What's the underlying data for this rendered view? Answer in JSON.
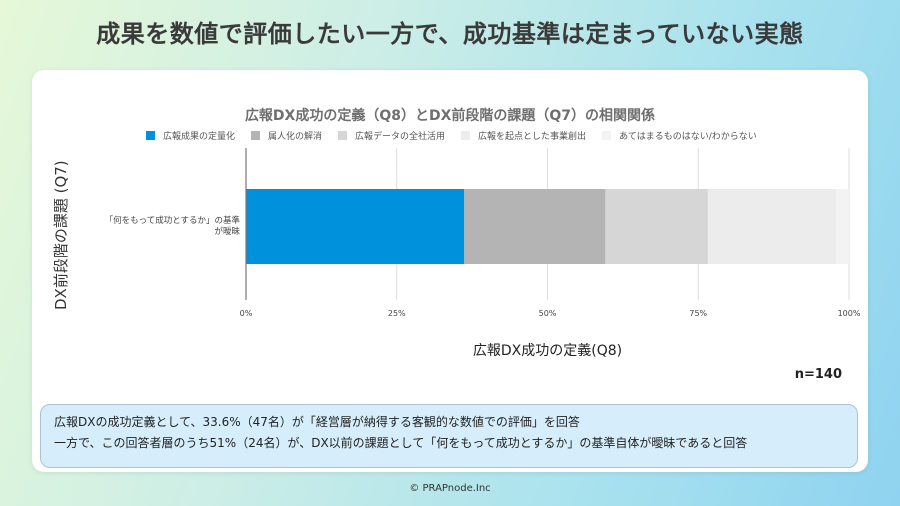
{
  "page": {
    "title": "成果を数値で評価したい一方で、成功基準は定まっていない実態",
    "copyright": "© PRAPnode.Inc"
  },
  "summary": {
    "line1": "広報DXの成功定義として、33.6%（47名）が「経営層が納得する客観的な数値での評価」を回答",
    "line2": "一方で、この回答者層のうち51%（24名）が、DX以前の課題として「何をもって成功とするか」の基準自体が曖昧であると回答"
  },
  "chart_data": {
    "type": "bar",
    "orientation": "horizontal",
    "stacked": "percent",
    "title": "広報DX成功の定義（Q8）とDX前段階の課題（Q7）の相関関係",
    "xlabel": "広報DX成功の定義(Q8)",
    "ylabel": "DX前段階の課題 (Q7)",
    "categories": [
      "「何をもって成功とするか」の基準が曖昧"
    ],
    "category_lines": [
      "「何をもって成功とするか」の基準",
      "が曖昧"
    ],
    "xlim": [
      0,
      100
    ],
    "x_ticks": [
      0,
      25,
      50,
      75,
      100
    ],
    "x_tick_labels": [
      "0%",
      "25%",
      "50%",
      "75%",
      "100%"
    ],
    "grid": true,
    "legend_position": "top",
    "annotation": "n=140",
    "series": [
      {
        "name": "広報成果の定量化",
        "color": "#0091dc",
        "values": [
          36.2
        ]
      },
      {
        "name": "属人化の解消",
        "color": "#b4b4b4",
        "values": [
          23.4
        ]
      },
      {
        "name": "広報データの全社活用",
        "color": "#d6d6d6",
        "values": [
          17.0
        ]
      },
      {
        "name": "広報を起点とした事業創出",
        "color": "#ececec",
        "values": [
          21.3
        ]
      },
      {
        "name": "あてはまるものはない/わからない",
        "color": "#f3f3f3",
        "values": [
          2.1
        ]
      }
    ]
  }
}
